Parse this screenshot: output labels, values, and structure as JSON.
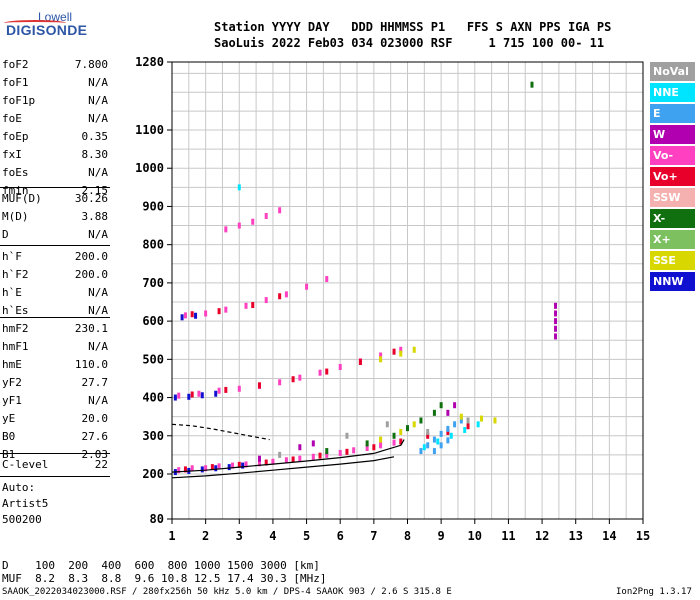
{
  "logo": {
    "line1": "Lowell",
    "line2": "DIGISONDE"
  },
  "header": {
    "line1": "Station YYYY DAY   DDD HHMMSS P1   FFS S AXN PPS IGA PS",
    "line2": "SaoLuis 2022 Feb03 034 023000 RSF     1 715 100 00- 11"
  },
  "params_group1": [
    {
      "name": "foF2",
      "value": "7.800"
    },
    {
      "name": "foF1",
      "value": "N/A"
    },
    {
      "name": "foF1p",
      "value": "N/A"
    },
    {
      "name": "foE",
      "value": "N/A"
    },
    {
      "name": "foEp",
      "value": "0.35"
    },
    {
      "name": "fxI",
      "value": "8.30"
    },
    {
      "name": "foEs",
      "value": "N/A"
    },
    {
      "name": "fmin",
      "value": "2.15"
    }
  ],
  "params_group2": [
    {
      "name": "MUF(D)",
      "value": "30.26"
    },
    {
      "name": "M(D)",
      "value": "3.88"
    },
    {
      "name": "D",
      "value": "N/A"
    }
  ],
  "params_group3": [
    {
      "name": "h`F",
      "value": "200.0"
    },
    {
      "name": "h`F2",
      "value": "200.0"
    },
    {
      "name": "h`E",
      "value": "N/A"
    },
    {
      "name": "h`Es",
      "value": "N/A"
    }
  ],
  "params_group4": [
    {
      "name": "hmF2",
      "value": "230.1"
    },
    {
      "name": "hmF1",
      "value": "N/A"
    },
    {
      "name": "hmE",
      "value": "110.0"
    },
    {
      "name": "yF2",
      "value": "27.7"
    },
    {
      "name": "yF1",
      "value": "N/A"
    },
    {
      "name": "yE",
      "value": "20.0"
    },
    {
      "name": "B0",
      "value": "27.6"
    },
    {
      "name": "B1",
      "value": "2.03"
    }
  ],
  "clevel": {
    "name": "C-level",
    "value": "22"
  },
  "scaler": [
    "Auto:",
    "Artist5",
    "500200"
  ],
  "legend": [
    {
      "label": "NoVal",
      "color": "#a0a0a0"
    },
    {
      "label": "NNE",
      "color": "#00e5ff"
    },
    {
      "label": "E",
      "color": "#3fa2f0"
    },
    {
      "label": "W",
      "color": "#b000b0"
    },
    {
      "label": "Vo-",
      "color": "#ff40c0"
    },
    {
      "label": "Vo+",
      "color": "#e8002a"
    },
    {
      "label": "SSW",
      "color": "#f5b0b0"
    },
    {
      "label": "X-",
      "color": "#107010"
    },
    {
      "label": "X+",
      "color": "#7cc060"
    },
    {
      "label": "SSE",
      "color": "#d8d800"
    },
    {
      "label": "NNW",
      "color": "#1010d0"
    }
  ],
  "muf_table": {
    "d_row": "D    100  200  400  600  800 1000 1500 3000 [km]",
    "muf_row": "MUF  8.2  8.3  8.8  9.6 10.8 12.5 17.4 30.3 [MHz]"
  },
  "footer": {
    "left": "SAAOK_2022034023000.RSF / 280fx256h 50 kHz 5.0 km / DPS-4 SAAOK 903 / 2.6 S 315.8 E",
    "right": "Ion2Png 1.3.17"
  },
  "chart_data": {
    "type": "scatter",
    "x_ticks": [
      1,
      2,
      3,
      4,
      5,
      6,
      7,
      8,
      9,
      10,
      11,
      12,
      13,
      14,
      15
    ],
    "y_ticks": [
      80,
      200,
      300,
      400,
      500,
      600,
      700,
      800,
      900,
      1000,
      1100,
      1280
    ],
    "xlim": [
      1,
      15
    ],
    "ylim": [
      80,
      1280
    ],
    "grid": true,
    "legend_position": "right",
    "series": [
      {
        "color": "#ff40c0",
        "points": [
          [
            1.2,
            210
          ],
          [
            1.6,
            215
          ],
          [
            2.0,
            215
          ],
          [
            2.4,
            220
          ],
          [
            2.8,
            222
          ],
          [
            3.2,
            225
          ],
          [
            3.6,
            228
          ],
          [
            4.0,
            232
          ],
          [
            4.4,
            236
          ],
          [
            4.8,
            240
          ],
          [
            5.2,
            245
          ],
          [
            5.6,
            250
          ],
          [
            6.0,
            255
          ],
          [
            6.4,
            262
          ],
          [
            6.8,
            268
          ],
          [
            7.2,
            275
          ],
          [
            7.6,
            282
          ],
          [
            1.2,
            405
          ],
          [
            1.8,
            410
          ],
          [
            2.4,
            418
          ],
          [
            3.0,
            423
          ],
          [
            3.6,
            430
          ],
          [
            4.2,
            440
          ],
          [
            4.8,
            452
          ],
          [
            5.4,
            465
          ],
          [
            6.0,
            480
          ],
          [
            6.6,
            495
          ],
          [
            7.2,
            510
          ],
          [
            7.8,
            525
          ],
          [
            1.4,
            615
          ],
          [
            2.0,
            620
          ],
          [
            2.6,
            630
          ],
          [
            3.2,
            640
          ],
          [
            3.8,
            655
          ],
          [
            4.4,
            670
          ],
          [
            5.0,
            690
          ],
          [
            5.6,
            710
          ],
          [
            2.6,
            840
          ],
          [
            3.0,
            850
          ],
          [
            3.4,
            860
          ],
          [
            3.8,
            875
          ],
          [
            4.2,
            890
          ]
        ]
      },
      {
        "color": "#e8002a",
        "points": [
          [
            1.4,
            212
          ],
          [
            2.2,
            218
          ],
          [
            3.0,
            224
          ],
          [
            3.8,
            230
          ],
          [
            4.6,
            238
          ],
          [
            5.4,
            248
          ],
          [
            6.2,
            258
          ],
          [
            7.0,
            270
          ],
          [
            7.8,
            285
          ],
          [
            8.6,
            300
          ],
          [
            9.2,
            310
          ],
          [
            9.8,
            325
          ],
          [
            1.6,
            408
          ],
          [
            2.6,
            420
          ],
          [
            3.6,
            432
          ],
          [
            4.6,
            448
          ],
          [
            5.6,
            468
          ],
          [
            6.6,
            493
          ],
          [
            7.6,
            520
          ],
          [
            1.6,
            618
          ],
          [
            2.4,
            626
          ],
          [
            3.4,
            642
          ],
          [
            4.2,
            665
          ]
        ]
      },
      {
        "color": "#1010d0",
        "points": [
          [
            1.1,
            205
          ],
          [
            1.5,
            208
          ],
          [
            1.9,
            212
          ],
          [
            2.3,
            215
          ],
          [
            2.7,
            218
          ],
          [
            3.1,
            222
          ],
          [
            1.1,
            400
          ],
          [
            1.5,
            402
          ],
          [
            1.9,
            406
          ],
          [
            2.3,
            410
          ],
          [
            1.3,
            610
          ],
          [
            1.7,
            614
          ]
        ]
      },
      {
        "color": "#3fa2f0",
        "points": [
          [
            8.4,
            260
          ],
          [
            8.6,
            275
          ],
          [
            8.8,
            290
          ],
          [
            9.0,
            305
          ],
          [
            9.2,
            318
          ],
          [
            9.4,
            330
          ],
          [
            9.6,
            340
          ],
          [
            8.8,
            260
          ],
          [
            9.0,
            275
          ],
          [
            9.2,
            288
          ]
        ]
      },
      {
        "color": "#00e5ff",
        "points": [
          [
            8.5,
            270
          ],
          [
            8.9,
            285
          ],
          [
            9.3,
            300
          ],
          [
            9.7,
            315
          ],
          [
            10.1,
            330
          ],
          [
            3.0,
            950
          ]
        ]
      },
      {
        "color": "#107010",
        "points": [
          [
            7.6,
            300
          ],
          [
            8.0,
            320
          ],
          [
            8.4,
            340
          ],
          [
            8.8,
            360
          ],
          [
            9.0,
            380
          ],
          [
            11.7,
            1220
          ],
          [
            6.8,
            280
          ],
          [
            5.6,
            260
          ]
        ]
      },
      {
        "color": "#d8d800",
        "points": [
          [
            7.2,
            290
          ],
          [
            7.8,
            310
          ],
          [
            8.2,
            330
          ],
          [
            9.6,
            350
          ],
          [
            10.2,
            345
          ],
          [
            10.6,
            340
          ],
          [
            7.2,
            500
          ],
          [
            7.8,
            515
          ],
          [
            8.2,
            525
          ]
        ]
      },
      {
        "color": "#b000b0",
        "points": [
          [
            12.4,
            560
          ],
          [
            12.4,
            580
          ],
          [
            12.4,
            600
          ],
          [
            12.4,
            620
          ],
          [
            12.4,
            640
          ],
          [
            4.8,
            270
          ],
          [
            5.2,
            280
          ],
          [
            3.6,
            240
          ],
          [
            9.2,
            360
          ],
          [
            9.4,
            380
          ]
        ]
      },
      {
        "color": "#a0a0a0",
        "points": [
          [
            4.2,
            250
          ],
          [
            6.2,
            300
          ],
          [
            7.4,
            330
          ],
          [
            8.6,
            310
          ],
          [
            9.8,
            340
          ]
        ]
      }
    ],
    "trace_curves": [
      {
        "color": "#000000",
        "points": [
          [
            1.0,
            190
          ],
          [
            2.0,
            195
          ],
          [
            3.0,
            202
          ],
          [
            4.0,
            210
          ],
          [
            5.0,
            218
          ],
          [
            6.0,
            226
          ],
          [
            7.0,
            235
          ],
          [
            7.6,
            245
          ]
        ]
      },
      {
        "color": "#000000",
        "points": [
          [
            1.0,
            205
          ],
          [
            2.0,
            210
          ],
          [
            3.0,
            218
          ],
          [
            4.0,
            226
          ],
          [
            5.0,
            234
          ],
          [
            6.0,
            243
          ],
          [
            7.0,
            254
          ],
          [
            7.8,
            275
          ],
          [
            7.9,
            290
          ]
        ]
      },
      {
        "color": "#000000",
        "points": [
          [
            1.0,
            330
          ],
          [
            1.6,
            326
          ],
          [
            2.2,
            318
          ],
          [
            2.8,
            308
          ],
          [
            3.4,
            298
          ],
          [
            3.9,
            290
          ]
        ]
      }
    ]
  }
}
